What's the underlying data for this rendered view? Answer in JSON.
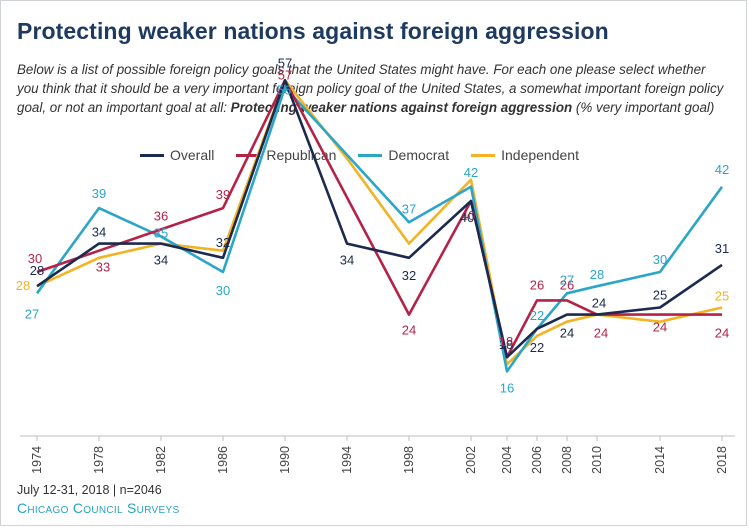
{
  "page": {
    "title": "Protecting weaker nations against foreign aggression",
    "subtitle_main": "Below is a list of possible foreign policy goals that the United States might have. For each one please select whether you think that it should be a very important foreign policy goal of the United States, a somewhat important foreign policy goal, or not an important goal at all: ",
    "subtitle_emph": "Protecting weaker nations against foreign aggression",
    "subtitle_end": " (% very important goal)",
    "footer_date": "July 12-31, 2018 | n=2046",
    "footer_source": "Chicago Council Surveys"
  },
  "chart_data": {
    "type": "line",
    "title": "Protecting weaker nations against foreign aggression",
    "legend_position": "top",
    "x": [
      "1974",
      "1978",
      "1982",
      "1986",
      "1990",
      "1994",
      "1998",
      "2002",
      "2004",
      "2006",
      "2008",
      "2010",
      "2014",
      "2018"
    ],
    "series": [
      {
        "name": "Overall",
        "color": "#1b2a4e",
        "values": [
          28,
          34,
          34,
          32,
          57,
          34,
          32,
          40,
          18,
          22,
          24,
          24,
          25,
          31
        ]
      },
      {
        "name": "Republican",
        "color": "#b42347",
        "values": [
          30,
          33,
          36,
          39,
          57,
          null,
          24,
          40,
          18,
          26,
          26,
          24,
          24,
          24
        ]
      },
      {
        "name": "Democrat",
        "color": "#2ba6c9",
        "values": [
          27,
          39,
          35,
          30,
          56,
          null,
          37,
          42,
          16,
          22,
          27,
          28,
          30,
          42
        ]
      },
      {
        "name": "Independent",
        "color": "#f3b325",
        "values": [
          28,
          null,
          null,
          null,
          null,
          null,
          null,
          null,
          null,
          null,
          null,
          null,
          null,
          25
        ]
      }
    ],
    "independent_line": [
      28,
      32,
      34,
      33,
      57,
      46,
      34,
      43,
      17,
      21,
      23,
      24,
      23,
      25
    ]
  }
}
